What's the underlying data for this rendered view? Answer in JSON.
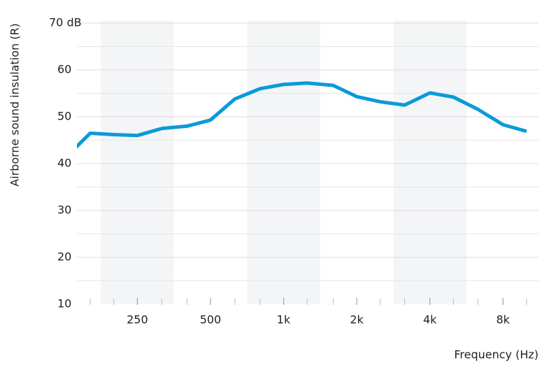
{
  "chart_data": {
    "type": "line",
    "y_label": "Airborne sound insulation (R)",
    "x_label": "Frequency (Hz)",
    "xscale": "log",
    "xlim": [
      141,
      11200
    ],
    "xticks": [
      250,
      500,
      {
        "value": 1000,
        "label": "1k"
      },
      {
        "value": 2000,
        "label": "2k"
      },
      {
        "value": 4000,
        "label": "4k"
      },
      {
        "value": 8000,
        "label": "8k"
      }
    ],
    "ylim": [
      10,
      70
    ],
    "yticks": [
      10,
      20,
      30,
      40,
      50,
      60,
      {
        "value": 70,
        "label": "70 dB"
      }
    ],
    "grid": true,
    "x": [
      125,
      160,
      200,
      250,
      315,
      400,
      500,
      630,
      800,
      1000,
      1250,
      1600,
      2000,
      2500,
      3150,
      4000,
      5000,
      6300,
      8000,
      10000
    ],
    "series": [
      {
        "color": "#0a9ad9",
        "values": [
          41.0,
          46.5,
          46.2,
          46.0,
          47.5,
          48.0,
          49.3,
          53.8,
          56.0,
          56.9,
          57.2,
          56.7,
          54.3,
          53.2,
          52.5,
          55.1,
          54.2,
          51.6,
          48.3,
          46.9
        ]
      }
    ]
  }
}
